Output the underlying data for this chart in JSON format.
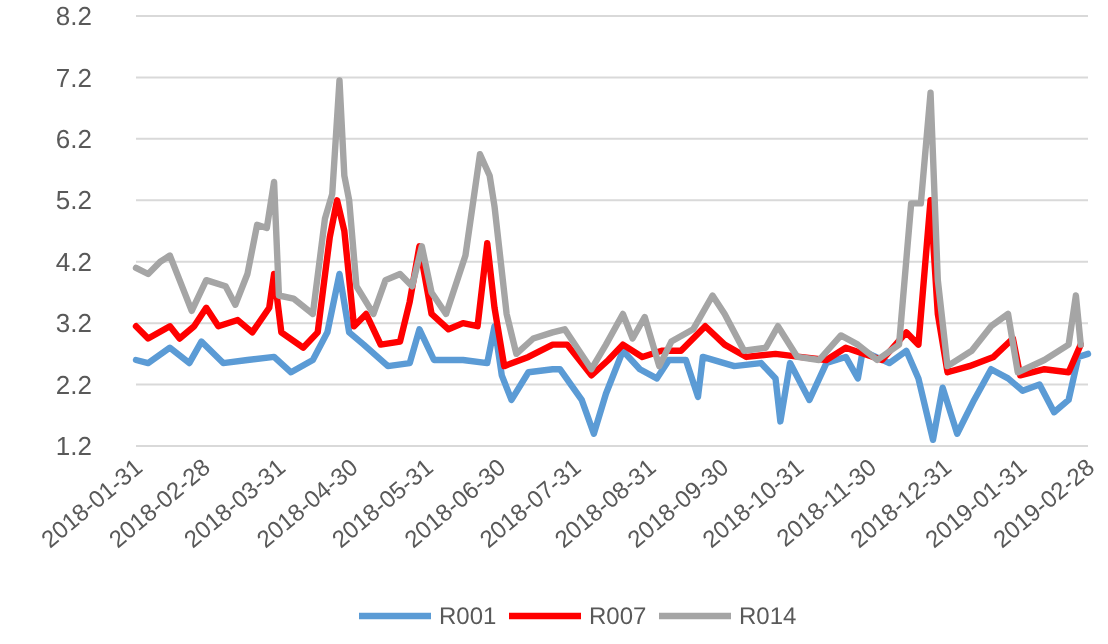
{
  "chart_data": {
    "type": "line",
    "xlim": [
      "2018-01-31",
      "2019-02-28"
    ],
    "xticks": [
      "2018-01-31",
      "2018-02-28",
      "2018-03-31",
      "2018-04-30",
      "2018-05-31",
      "2018-06-30",
      "2018-07-31",
      "2018-08-31",
      "2018-09-30",
      "2018-10-31",
      "2018-11-30",
      "2018-12-31",
      "2019-01-31",
      "2019-02-28"
    ],
    "ylim": [
      1.2,
      8.2
    ],
    "yticks": [
      1.2,
      2.2,
      3.2,
      4.2,
      5.2,
      6.2,
      7.2,
      8.2
    ],
    "grid": "y",
    "legend": "bottom",
    "marker": "none",
    "line_style": "solid",
    "series": [
      {
        "name": "R001",
        "color": "#5b9bd5",
        "x": [
          "2018-01-31",
          "2018-02-05",
          "2018-02-14",
          "2018-02-22",
          "2018-02-27",
          "2018-03-08",
          "2018-03-18",
          "2018-03-29",
          "2018-04-05",
          "2018-04-14",
          "2018-04-20",
          "2018-04-25",
          "2018-04-29",
          "2018-05-05",
          "2018-05-15",
          "2018-05-24",
          "2018-05-28",
          "2018-06-03",
          "2018-06-15",
          "2018-06-25",
          "2018-06-28",
          "2018-07-01",
          "2018-07-05",
          "2018-07-12",
          "2018-07-22",
          "2018-07-25",
          "2018-08-03",
          "2018-08-08",
          "2018-08-13",
          "2018-08-20",
          "2018-08-27",
          "2018-09-03",
          "2018-09-08",
          "2018-09-15",
          "2018-09-20",
          "2018-09-22",
          "2018-10-05",
          "2018-10-16",
          "2018-10-22",
          "2018-10-24",
          "2018-10-28",
          "2018-11-05",
          "2018-11-12",
          "2018-11-20",
          "2018-11-25",
          "2018-11-27",
          "2018-12-08",
          "2018-12-15",
          "2018-12-20",
          "2018-12-26",
          "2018-12-30",
          "2019-01-05",
          "2019-01-12",
          "2019-01-19",
          "2019-01-26",
          "2019-02-01",
          "2019-02-08",
          "2019-02-14",
          "2019-02-20",
          "2019-02-24",
          "2019-02-28"
        ],
        "values": [
          2.6,
          2.55,
          2.8,
          2.55,
          2.9,
          2.55,
          2.6,
          2.65,
          2.4,
          2.6,
          3.05,
          4.0,
          3.05,
          2.85,
          2.5,
          2.55,
          3.1,
          2.6,
          2.6,
          2.55,
          3.15,
          2.35,
          1.95,
          2.4,
          2.45,
          2.45,
          1.95,
          1.4,
          2.05,
          2.75,
          2.45,
          2.3,
          2.6,
          2.6,
          2.0,
          2.65,
          2.5,
          2.55,
          2.3,
          1.6,
          2.55,
          1.95,
          2.55,
          2.65,
          2.3,
          2.75,
          2.55,
          2.75,
          2.3,
          1.3,
          2.15,
          1.4,
          1.95,
          2.45,
          2.3,
          2.1,
          2.2,
          1.75,
          1.95,
          2.65,
          2.7
        ]
      },
      {
        "name": "R007",
        "color": "#ff0000",
        "x": [
          "2018-01-31",
          "2018-02-05",
          "2018-02-14",
          "2018-02-18",
          "2018-02-24",
          "2018-03-01",
          "2018-03-06",
          "2018-03-14",
          "2018-03-20",
          "2018-03-27",
          "2018-03-29",
          "2018-04-01",
          "2018-04-10",
          "2018-04-16",
          "2018-04-21",
          "2018-04-24",
          "2018-04-27",
          "2018-05-01",
          "2018-05-06",
          "2018-05-12",
          "2018-05-20",
          "2018-05-24",
          "2018-05-28",
          "2018-06-02",
          "2018-06-09",
          "2018-06-15",
          "2018-06-21",
          "2018-06-25",
          "2018-06-28",
          "2018-07-02",
          "2018-07-12",
          "2018-07-22",
          "2018-07-28",
          "2018-08-07",
          "2018-08-14",
          "2018-08-20",
          "2018-08-28",
          "2018-09-05",
          "2018-09-13",
          "2018-09-23",
          "2018-10-01",
          "2018-10-10",
          "2018-10-22",
          "2018-11-01",
          "2018-11-12",
          "2018-11-20",
          "2018-12-05",
          "2018-12-15",
          "2018-12-20",
          "2018-12-25",
          "2018-12-28",
          "2019-01-01",
          "2019-01-10",
          "2019-01-20",
          "2019-01-28",
          "2019-01-31",
          "2019-02-10",
          "2019-02-20",
          "2019-02-25"
        ],
        "values": [
          3.15,
          2.95,
          3.15,
          2.95,
          3.15,
          3.45,
          3.15,
          3.25,
          3.05,
          3.45,
          4.0,
          3.05,
          2.8,
          3.05,
          4.6,
          5.2,
          4.7,
          3.15,
          3.35,
          2.85,
          2.9,
          3.55,
          4.45,
          3.35,
          3.1,
          3.2,
          3.15,
          4.5,
          3.45,
          2.5,
          2.65,
          2.85,
          2.85,
          2.35,
          2.6,
          2.85,
          2.65,
          2.75,
          2.75,
          3.15,
          2.85,
          2.65,
          2.7,
          2.65,
          2.6,
          2.8,
          2.6,
          3.05,
          2.85,
          5.2,
          3.35,
          2.4,
          2.5,
          2.65,
          2.95,
          2.35,
          2.45,
          2.4,
          2.85
        ]
      },
      {
        "name": "R014",
        "color": "#a5a5a5",
        "x": [
          "2018-01-31",
          "2018-02-05",
          "2018-02-10",
          "2018-02-14",
          "2018-02-18",
          "2018-02-23",
          "2018-03-01",
          "2018-03-09",
          "2018-03-13",
          "2018-03-18",
          "2018-03-22",
          "2018-03-26",
          "2018-03-29",
          "2018-03-31",
          "2018-04-06",
          "2018-04-14",
          "2018-04-19",
          "2018-04-22",
          "2018-04-25",
          "2018-04-27",
          "2018-04-29",
          "2018-05-02",
          "2018-05-09",
          "2018-05-14",
          "2018-05-20",
          "2018-05-25",
          "2018-05-29",
          "2018-06-02",
          "2018-06-08",
          "2018-06-16",
          "2018-06-22",
          "2018-06-26",
          "2018-06-28",
          "2018-07-03",
          "2018-07-07",
          "2018-07-14",
          "2018-07-22",
          "2018-07-27",
          "2018-08-07",
          "2018-08-13",
          "2018-08-20",
          "2018-08-24",
          "2018-08-29",
          "2018-09-04",
          "2018-09-09",
          "2018-09-18",
          "2018-09-26",
          "2018-10-01",
          "2018-10-09",
          "2018-10-18",
          "2018-10-23",
          "2018-10-31",
          "2018-11-09",
          "2018-11-18",
          "2018-11-25",
          "2018-12-03",
          "2018-12-12",
          "2018-12-17",
          "2018-12-21",
          "2018-12-25",
          "2018-12-28",
          "2019-01-01",
          "2019-01-11",
          "2019-01-19",
          "2019-01-26",
          "2019-01-30",
          "2019-02-10",
          "2019-02-20",
          "2019-02-23",
          "2019-02-25"
        ],
        "values": [
          4.1,
          4.0,
          4.2,
          4.3,
          3.9,
          3.4,
          3.9,
          3.8,
          3.5,
          4.0,
          4.8,
          4.75,
          5.5,
          3.65,
          3.6,
          3.35,
          4.9,
          5.3,
          7.15,
          5.6,
          5.2,
          3.8,
          3.35,
          3.9,
          4.0,
          3.8,
          4.45,
          3.7,
          3.35,
          4.3,
          5.95,
          5.6,
          5.1,
          3.35,
          2.7,
          2.95,
          3.05,
          3.1,
          2.45,
          2.85,
          3.35,
          2.95,
          3.3,
          2.5,
          2.9,
          3.1,
          3.65,
          3.35,
          2.75,
          2.8,
          3.15,
          2.65,
          2.6,
          3.0,
          2.85,
          2.6,
          2.85,
          5.15,
          5.15,
          6.95,
          3.9,
          2.5,
          2.75,
          3.15,
          3.35,
          2.4,
          2.6,
          2.85,
          3.65,
          2.85
        ]
      }
    ]
  }
}
